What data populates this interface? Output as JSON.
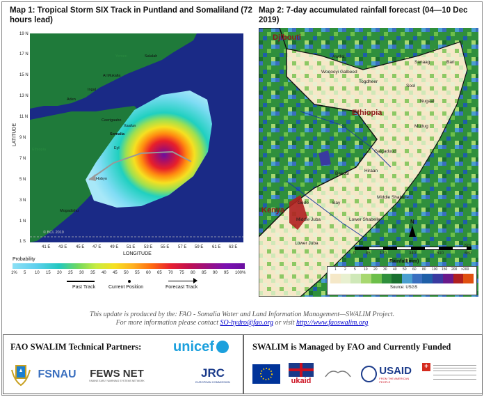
{
  "map1": {
    "title": "Map 1: Tropical Storm SIX Track in Puntland and Somaliland (72 hours lead)",
    "y_axis_label": "LATITUDE",
    "x_axis_label": "LONGITUDE",
    "lat_ticks": [
      "19 N",
      "17 N",
      "15 N",
      "13 N",
      "11 N",
      "9 N",
      "7 N",
      "5 N",
      "3 N",
      "1 N",
      "1 S"
    ],
    "lon_ticks": [
      "41 E",
      "43 E",
      "45 E",
      "47 E",
      "49 E",
      "51 E",
      "53 E",
      "55 E",
      "57 E",
      "59 E",
      "61 E",
      "63 E"
    ],
    "places": {
      "yemen": "Yemen",
      "salalah": "Salalah",
      "al_mukalla": "Al Mukalla",
      "ingal": "Ingal",
      "aden": "Aden",
      "ceerigaabo": "Ceerigaabo",
      "xaafun": "Xaafun",
      "somalia": "Somalia",
      "eyl": "Eyl",
      "hobyo": "Hobyo",
      "mogadishu": "Mogadishu",
      "ethiopia": "Ethiopia"
    },
    "copyright": "© BCL 2019",
    "probability_label": "Probability",
    "probability_ticks": [
      "1%",
      "5",
      "10",
      "15",
      "20",
      "25",
      "30",
      "35",
      "40",
      "45",
      "50",
      "55",
      "60",
      "65",
      "70",
      "75",
      "80",
      "85",
      "90",
      "95",
      "100%"
    ],
    "legend": {
      "past_track": "Past Track",
      "current_position": "Current Position",
      "forecast_track": "Forecast Track"
    }
  },
  "map2": {
    "title": "Map 2: 7-day accumulated rainfall forecast  (04—10 Dec 2019)",
    "countries": {
      "djibouti": "Djibouti",
      "ethiopia": "Ethiopia",
      "kenya": "Kenya"
    },
    "regions": {
      "awdal": "Awdal",
      "woqooyi_galbeed": "Woqooyi Galbeed",
      "sanaag": "Sanaag",
      "bari": "Bari",
      "togdheer": "Togdheer",
      "sool": "Sool",
      "nugaal": "Nugaal",
      "mudug": "Mudug",
      "galgaduud": "Galgaduud",
      "hiraan": "Hiraan",
      "bakool": "Bakool",
      "gedo": "Gedo",
      "bay": "Bay",
      "middle_shabelle": "Middle Shabelle",
      "middle_juba": "Middle Juba",
      "lower_shabelle": "Lower Shabelle",
      "lower_juba": "Lower Juba"
    },
    "north_label": "N",
    "scale_ticks": [
      "0",
      "85",
      "170",
      "340",
      "510",
      "680"
    ],
    "scale_unit": "Km",
    "rainfall_label": "Rainfall(mm)",
    "rain_ticks": [
      "1",
      "2",
      "5",
      "10",
      "20",
      "30",
      "40",
      "50",
      "60",
      "80",
      "100",
      "150",
      "200",
      ">200"
    ],
    "source": "Source: USGS"
  },
  "credits": {
    "line1": "This update is produced by the: FAO - Somalia Water and Land Information Management—SWALIM Project.",
    "line2_prefix": "For more information please contact ",
    "email": "SO-hydro@fao.org",
    "line2_mid": " or visit ",
    "url": "http://www.faoswalim.org"
  },
  "partners": {
    "title": "FAO SWALIM Technical Partners:",
    "unicef": "unicef",
    "fsnau": "FSNAU",
    "fews_net": "FEWS NET",
    "fews_sub": "FAMINE EARLY WARNING SYSTEMS NETWORK",
    "jrc": "JRC",
    "jrc_sub": "EUROPEAN COMMISSION"
  },
  "funders": {
    "title": "SWALIM is Managed by FAO and Currently Funded",
    "ukaid": "ukaid",
    "usaid": "USAID",
    "usaid_sub": "FROM THE AMERICAN PEOPLE"
  },
  "colors": {
    "sea": "#1a2a86",
    "land": "#1f7a3a",
    "storm_cyan": "#66d7f2",
    "frame": "#333333"
  }
}
